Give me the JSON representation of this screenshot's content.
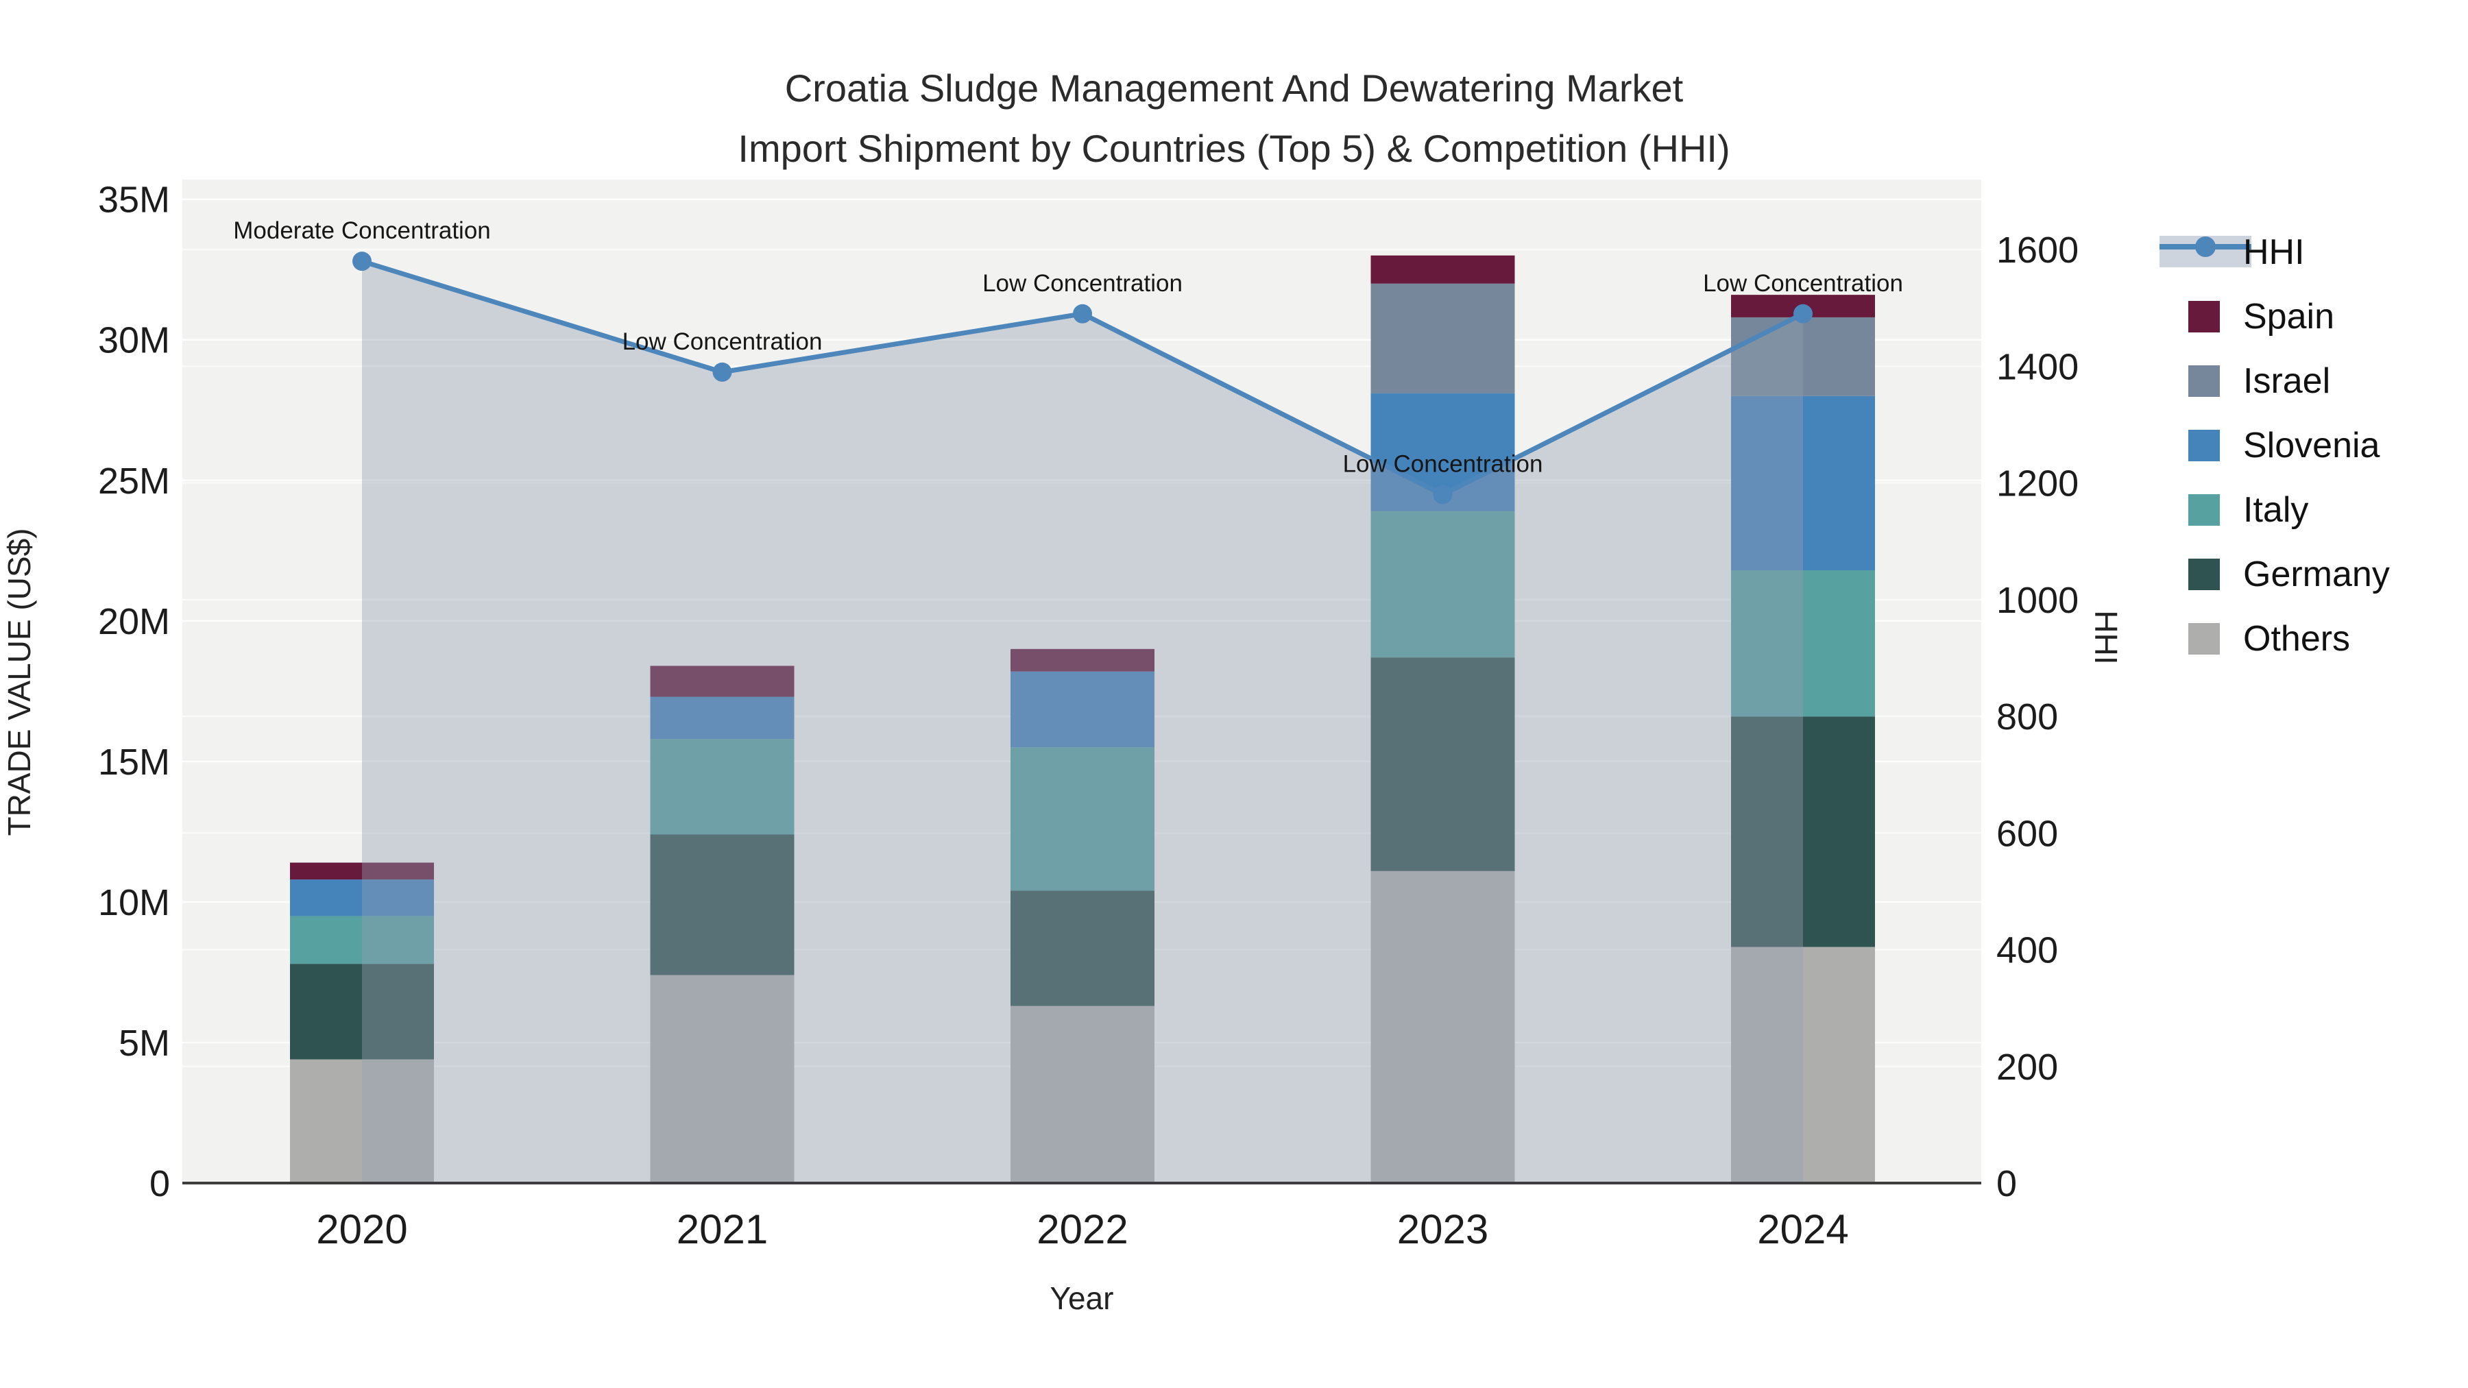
{
  "title": {
    "line1": "Croatia Sludge Management And Dewatering Market",
    "line2": "Import Shipment by Countries (Top 5) & Competition (HHI)"
  },
  "axes": {
    "y_left": {
      "title": "TRADE VALUE (US$)",
      "tick_labels": [
        "0",
        "5M",
        "10M",
        "15M",
        "20M",
        "25M",
        "30M",
        "35M"
      ],
      "tick_values_millions": [
        0,
        5,
        10,
        15,
        20,
        25,
        30,
        35
      ]
    },
    "y_right": {
      "title": "HHI",
      "tick_labels": [
        "0",
        "200",
        "400",
        "600",
        "800",
        "1000",
        "1200",
        "1400",
        "1600"
      ],
      "tick_values": [
        0,
        200,
        400,
        600,
        800,
        1000,
        1200,
        1400,
        1600
      ]
    },
    "x": {
      "title": "Year",
      "tick_labels": [
        "2020",
        "2021",
        "2022",
        "2023",
        "2024"
      ]
    }
  },
  "legend": {
    "items": [
      {
        "label": "HHI",
        "kind": "line",
        "color": "#4d86ba",
        "band_color": "#cdd4de"
      },
      {
        "label": "Spain",
        "kind": "square",
        "color": "#671a3c"
      },
      {
        "label": "Israel",
        "kind": "square",
        "color": "#76879b"
      },
      {
        "label": "Slovenia",
        "kind": "square",
        "color": "#4583bb"
      },
      {
        "label": "Italy",
        "kind": "square",
        "color": "#58a1a1"
      },
      {
        "label": "Germany",
        "kind": "square",
        "color": "#2f5350"
      },
      {
        "label": "Others",
        "kind": "square",
        "color": "#aeafac"
      }
    ]
  },
  "style_colors": {
    "plot_background": "#f2f2f0",
    "gridline": "#ffffff",
    "axis_line": "#3d3d3d",
    "hhi_line": "#4d86ba",
    "hhi_area_fill": "rgba(147,159,178,0.40)"
  },
  "chart_data": {
    "type": "bar",
    "subtype": "stacked-bars-with-line-overlay",
    "title": "Croatia Sludge Management And Dewatering Market Import Shipment by Countries (Top 5) & Competition (HHI)",
    "xlabel": "Year",
    "ylabel": "TRADE VALUE (US$)",
    "ylabel_right": "HHI",
    "categories": [
      "2020",
      "2021",
      "2022",
      "2023",
      "2024"
    ],
    "bar_unit": "US$ millions",
    "ylim_left_millions": [
      0,
      35.7
    ],
    "ylim_right": [
      0,
      1720
    ],
    "grid": true,
    "legend_position": "right",
    "series": [
      {
        "name": "Others",
        "color": "#aeafac",
        "values": [
          4.4,
          7.4,
          6.3,
          11.1,
          8.4
        ]
      },
      {
        "name": "Germany",
        "color": "#2f5350",
        "values": [
          3.4,
          5.0,
          4.1,
          7.6,
          8.2
        ]
      },
      {
        "name": "Italy",
        "color": "#58a1a1",
        "values": [
          1.7,
          3.4,
          5.1,
          5.2,
          5.2
        ]
      },
      {
        "name": "Slovenia",
        "color": "#4583bb",
        "values": [
          1.3,
          1.5,
          2.7,
          4.2,
          6.2
        ]
      },
      {
        "name": "Israel",
        "color": "#76879b",
        "values": [
          0,
          0,
          0,
          3.9,
          2.8
        ]
      },
      {
        "name": "Spain",
        "color": "#671a3c",
        "values": [
          0.6,
          1.1,
          0.8,
          1.0,
          0.8
        ]
      }
    ],
    "bar_totals_millions": [
      11.4,
      18.4,
      19.0,
      33.0,
      31.6
    ],
    "line": {
      "name": "HHI",
      "axis": "right",
      "color": "#4d86ba",
      "area": true,
      "values": [
        1580,
        1390,
        1490,
        1180,
        1490
      ]
    },
    "annotations": [
      {
        "category": "2020",
        "text": "Moderate Concentration"
      },
      {
        "category": "2021",
        "text": "Low Concentration"
      },
      {
        "category": "2022",
        "text": "Low Concentration"
      },
      {
        "category": "2023",
        "text": "Low Concentration"
      },
      {
        "category": "2024",
        "text": "Low Concentration"
      }
    ]
  }
}
